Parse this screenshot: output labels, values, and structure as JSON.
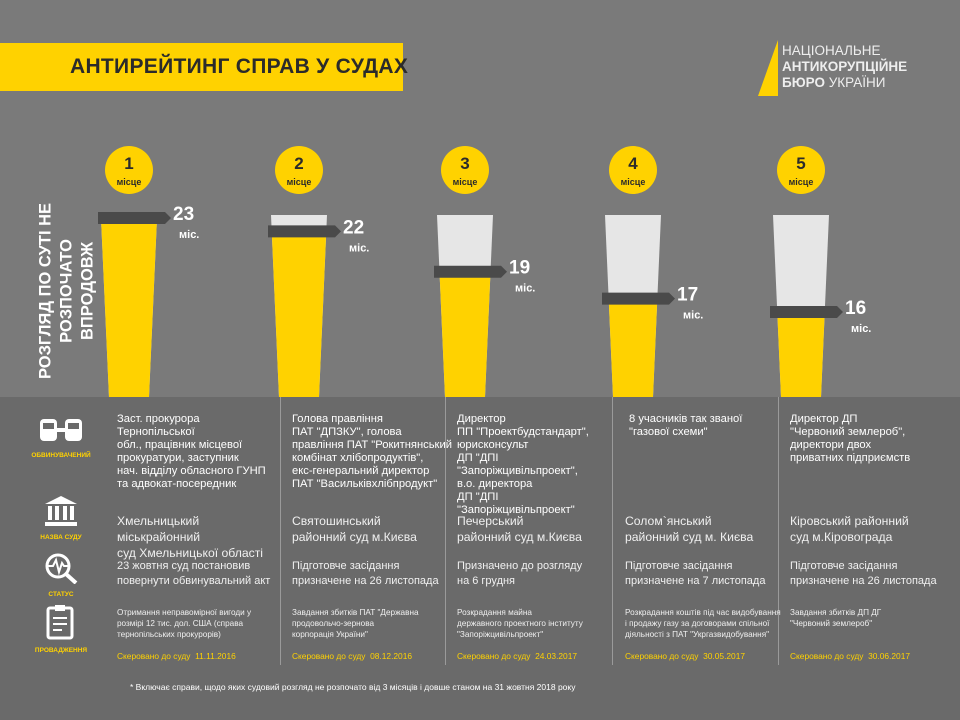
{
  "title": "АНТИРЕЙТИНГ СПРАВ У СУДАХ",
  "logo": {
    "line1": "НАЦІОНАЛЬНЕ",
    "line2": "АНТИКОРУПЦІЙНЕ",
    "line3_bold": "БЮРО",
    "line3_rest": "УКРАЇНИ"
  },
  "vertical_title": {
    "line1": "РОЗГЛЯД ПО СУТІ НЕ",
    "line2": "РОЗПОЧАТО ВПРОДОВЖ"
  },
  "legend": {
    "accused": "ОБВИНУВАЧЕНИЙ",
    "court": "НАЗВА СУДУ",
    "status": "СТАТУС",
    "proceedings": "ПРОВАДЖЕННЯ"
  },
  "chart_data": {
    "type": "bar",
    "unit": "міс.",
    "place_word": "місце",
    "categories": [
      "1",
      "2",
      "3",
      "4",
      "5"
    ],
    "values": [
      23,
      22,
      19,
      17,
      16
    ]
  },
  "cases": [
    {
      "accused": [
        "Заст. прокурора Тернопільської",
        "обл., працівник місцевої",
        "прокуратури, заступник",
        "нач. відділу обласного ГУНП",
        "та адвокат-посередник"
      ],
      "court": [
        "Хмельницький міськрайонний",
        "суд Хмельницької області"
      ],
      "status": [
        "23 жовтня суд постановив",
        "повернути обвинувальний акт"
      ],
      "proceedings": [
        "Отримання неправомірної вигоди у",
        "розмірі 12 тис. дол. США (справа",
        "тернопільських прокурорів)"
      ],
      "sent_label": "Скеровано до суду",
      "sent_date": "11.11.2016"
    },
    {
      "accused": [
        "Голова правління",
        "ПАТ \"ДПЗКУ\", голова",
        "правління ПАТ \"Рокитнянський",
        "комбінат хлібопродуктів\",",
        "екс-генеральний директор",
        "ПАТ \"Васильківхлібпродукт\""
      ],
      "court": [
        "Святошинський",
        "районний суд м.Києва"
      ],
      "status": [
        "Підготовче засідання",
        "призначене на 26 листопада"
      ],
      "proceedings": [
        "Завдання збитків ПАТ \"Державна",
        "продовольчо-зернова",
        "корпорація України\""
      ],
      "sent_label": "Скеровано до суду",
      "sent_date": "08.12.2016"
    },
    {
      "accused": [
        "Директор",
        "ПП \"Проектбудстандарт\",",
        "юрисконсульт",
        "ДП \"ДПІ \"Запоріжцивільпроект\",",
        "в.о. директора",
        "ДП \"ДПІ \"Запоріжцивільпроект\""
      ],
      "court": [
        "Печерський",
        "районний суд м.Києва"
      ],
      "status": [
        "Призначено до розгляду",
        "на 6 грудня"
      ],
      "proceedings": [
        "Розкрадання майна",
        "державного проектного інституту",
        "\"Запоріжцивільпроект\""
      ],
      "sent_label": "Скеровано до суду",
      "sent_date": "24.03.2017"
    },
    {
      "accused": [
        "8 учасників так званої",
        "\"газової схеми\""
      ],
      "court": [
        "Солом`янський",
        "районний суд м. Києва"
      ],
      "status": [
        "Підготовче засідання",
        "призначене на 7 листопада"
      ],
      "proceedings": [
        "Розкрадання коштів під час видобування",
        "і продажу газу за договорами спільної",
        "діяльності з ПАТ \"Укргазвидобування\""
      ],
      "sent_label": "Скеровано до суду",
      "sent_date": "30.05.2017"
    },
    {
      "accused": [
        "Директор ДП",
        "\"Червоний землероб\",",
        "директори двох",
        "приватних підприємств"
      ],
      "court": [
        "Кіровський районний",
        "суд м.Кіровограда"
      ],
      "status": [
        "Підготовче засідання",
        "призначене на 26 листопада"
      ],
      "proceedings": [
        "Завдання збитків ДП ДГ",
        "\"Червоний землероб\""
      ],
      "sent_label": "Скеровано до суду",
      "sent_date": "30.06.2017"
    }
  ],
  "footnote": "*   Включає справи, щодо яких судовий розгляд не розпочато від 3 місяців і довше станом на 31 жовтня 2018 року",
  "colors": {
    "accent": "#ffd200",
    "dark": "#4a4a4a",
    "track": "#e6e6e6",
    "top_bg": "#7a7a7a",
    "bottom_bg": "#6a6a6a"
  }
}
